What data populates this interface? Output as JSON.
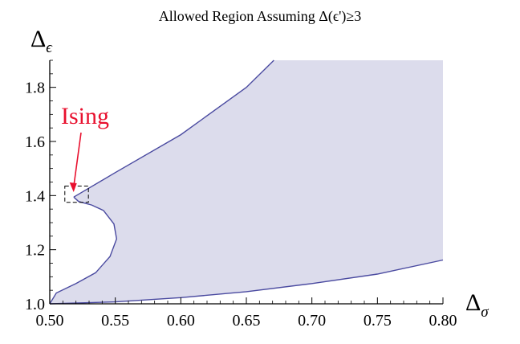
{
  "chart_data": {
    "type": "area",
    "title": "Allowed Region Assuming Δ(ϵ')≥3",
    "xlabel": {
      "symbol": "Δ",
      "subscript": "σ"
    },
    "ylabel": {
      "symbol": "Δ",
      "subscript": "ϵ"
    },
    "xlim": [
      0.5,
      0.8
    ],
    "ylim": [
      1.0,
      1.9
    ],
    "x_ticks": [
      "0.50",
      "0.55",
      "0.60",
      "0.65",
      "0.70",
      "0.75",
      "0.80"
    ],
    "y_ticks": [
      "1.0",
      "1.2",
      "1.4",
      "1.6",
      "1.8"
    ],
    "grid": false,
    "legend": "none",
    "fill_color": "#dcdcec",
    "line_color": "#4a4aa0",
    "annotation_color": "#e8102e",
    "allowed_region_boundary": {
      "upper_branch": [
        [
          0.5183,
          1.3946
        ],
        [
          0.55,
          1.485
        ],
        [
          0.6,
          1.625
        ],
        [
          0.65,
          1.8
        ],
        [
          0.671,
          1.9
        ]
      ],
      "kink_and_lower_branch": [
        [
          0.5183,
          1.3946
        ],
        [
          0.522,
          1.378
        ],
        [
          0.532,
          1.365
        ],
        [
          0.541,
          1.345
        ],
        [
          0.549,
          1.295
        ],
        [
          0.551,
          1.24
        ],
        [
          0.546,
          1.175
        ],
        [
          0.535,
          1.115
        ],
        [
          0.52,
          1.075
        ],
        [
          0.505,
          1.04
        ],
        [
          0.5,
          1.0
        ]
      ],
      "bottom_branch": [
        [
          0.5,
          1.0
        ],
        [
          0.55,
          1.007
        ],
        [
          0.6,
          1.023
        ],
        [
          0.65,
          1.045
        ],
        [
          0.7,
          1.075
        ],
        [
          0.75,
          1.11
        ],
        [
          0.8,
          1.162
        ]
      ]
    },
    "annotations": [
      {
        "text": "Ising",
        "point": [
          0.5182,
          1.4127
        ],
        "box": {
          "x0": 0.5115,
          "x1": 0.5295,
          "y0": 1.375,
          "y1": 1.435
        }
      }
    ]
  }
}
